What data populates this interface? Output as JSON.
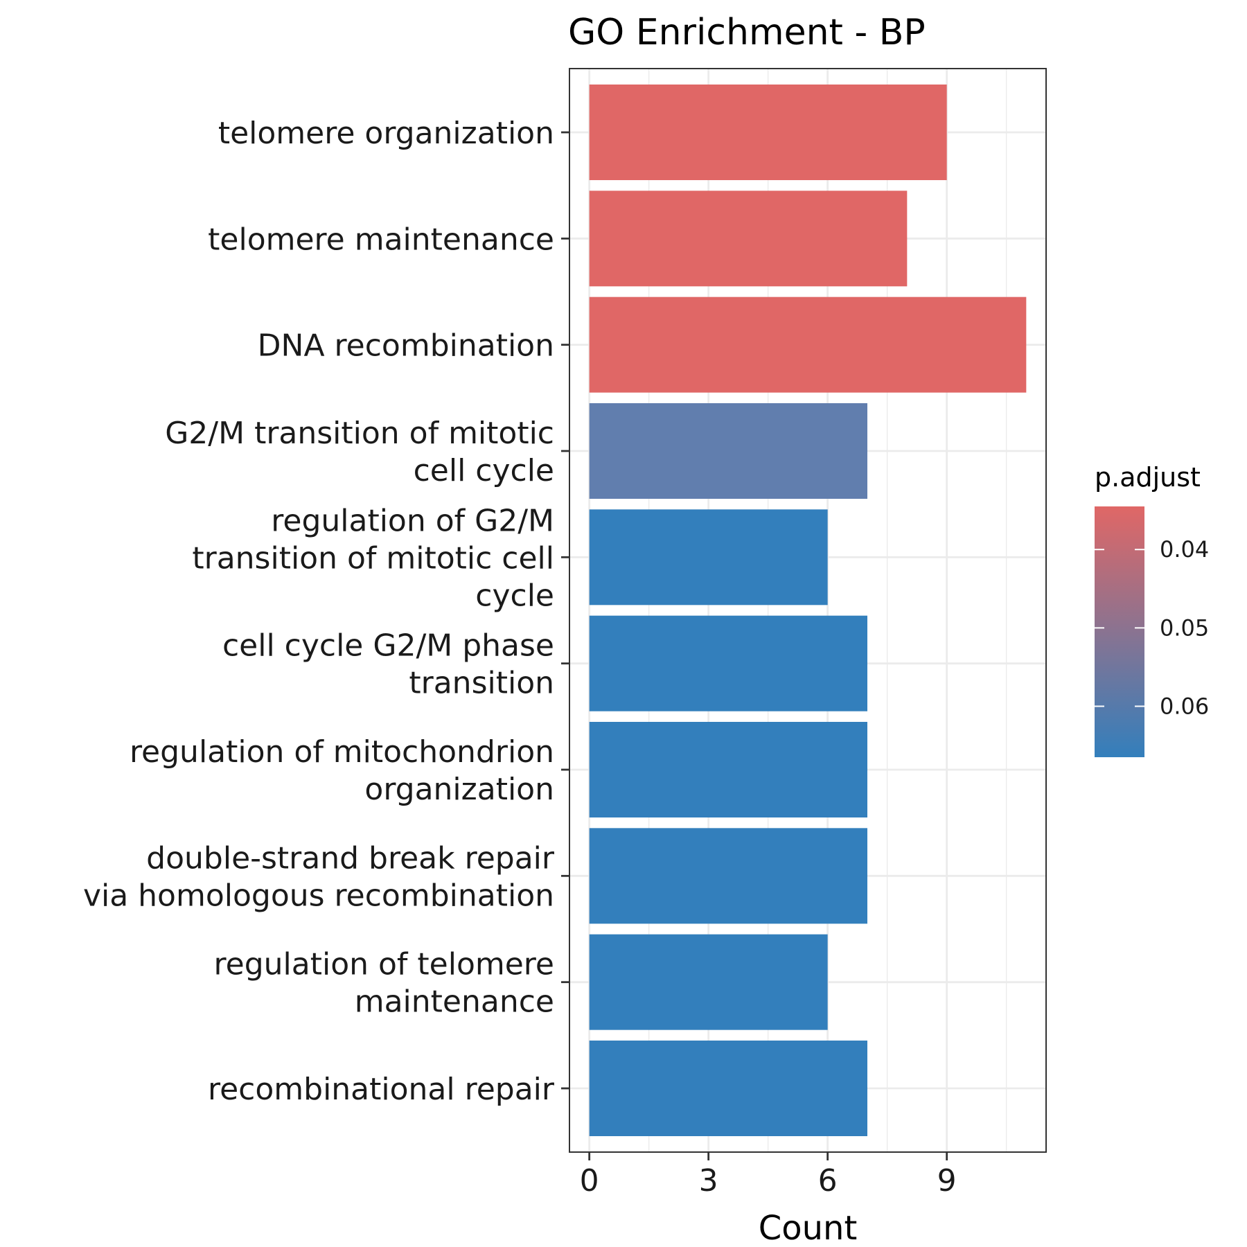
{
  "chart_data": {
    "type": "bar",
    "orientation": "horizontal",
    "title": "GO Enrichment - BP",
    "xlabel": "Count",
    "ylabel": "",
    "xlim": [
      -0.5,
      11.5
    ],
    "x_ticks": [
      0,
      3,
      6,
      9
    ],
    "grid": true,
    "categories": [
      [
        "telomere organization"
      ],
      [
        "telomere maintenance"
      ],
      [
        "DNA recombination"
      ],
      [
        "G2/M transition of mitotic",
        "cell cycle"
      ],
      [
        "regulation of G2/M",
        "transition of mitotic cell",
        "cycle"
      ],
      [
        "cell cycle G2/M phase",
        "transition"
      ],
      [
        "regulation of mitochondrion",
        "organization"
      ],
      [
        "double-strand break repair",
        "via homologous recombination"
      ],
      [
        "regulation of telomere",
        "maintenance"
      ],
      [
        "recombinational repair"
      ]
    ],
    "values": [
      9,
      8,
      11,
      7,
      6,
      7,
      7,
      7,
      6,
      7
    ],
    "p_adjust": [
      0.041,
      0.041,
      0.041,
      0.06,
      0.064,
      0.064,
      0.064,
      0.064,
      0.064,
      0.064
    ],
    "colors": [
      "#E06766",
      "#E06766",
      "#E06766",
      "#617EAE",
      "#337FBC",
      "#337FBC",
      "#337FBC",
      "#337FBC",
      "#337FBC",
      "#337FBC"
    ],
    "legend": {
      "title": "p.adjust",
      "placement": "right",
      "ticks": [
        "0.04",
        "0.05",
        "0.06"
      ],
      "tick_values": [
        0.04,
        0.05,
        0.06
      ],
      "range": [
        0.0345,
        0.0665
      ],
      "color_low": "#E06766",
      "color_high": "#337FBC"
    }
  }
}
